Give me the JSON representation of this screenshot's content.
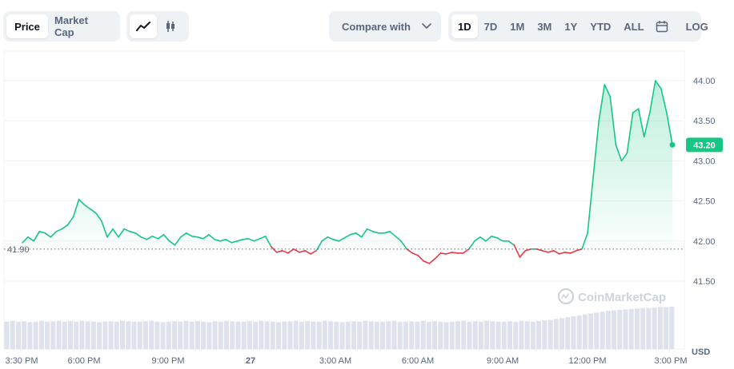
{
  "toolbar": {
    "type_tabs": [
      "Price",
      "Market Cap"
    ],
    "style_icons": [
      "line-chart-icon",
      "candlestick-icon"
    ],
    "compare_label": "Compare with",
    "ranges": [
      "1D",
      "7D",
      "1M",
      "3M",
      "1Y",
      "YTD",
      "ALL"
    ],
    "calendar_icon": "calendar-icon",
    "log_label": "LOG",
    "active_type": "Price",
    "active_range": "1D"
  },
  "watermark": "CoinMarketCap",
  "chart_data": {
    "type": "area",
    "x_unit": "time",
    "x_tick_labels": [
      "3:30 PM",
      "6:00 PM",
      "9:00 PM",
      "27",
      "3:00 AM",
      "6:00 AM",
      "9:00 AM",
      "12:00 PM",
      "3:00 PM"
    ],
    "y_tick_labels": [
      "41.50",
      "42.00",
      "42.50",
      "43.00",
      "43.50",
      "44.00"
    ],
    "ylim": [
      41.3,
      44.3
    ],
    "reference_line": {
      "value": 41.9,
      "label": "41.90"
    },
    "current_value": {
      "value": 43.2,
      "label": "43.20"
    },
    "currency_label": "USD",
    "colors": {
      "up": "#16c784",
      "down": "#ea3943",
      "volume": "#cfd6e4"
    },
    "series": [
      {
        "values": [
          41.98,
          42.05,
          42.0,
          42.12,
          42.1,
          42.05,
          42.12,
          42.15,
          42.2,
          42.3,
          42.52,
          42.45,
          42.4,
          42.35,
          42.25,
          42.05,
          42.15,
          42.05,
          42.15,
          42.12,
          42.1,
          42.05,
          42.02,
          42.06,
          42.03,
          42.08,
          42.0,
          41.95,
          42.05,
          42.1,
          42.06,
          42.05,
          42.03,
          42.08,
          42.02,
          42.0,
          42.02,
          41.98,
          42.0,
          42.02,
          42.03,
          42.0,
          42.03,
          42.06,
          41.93,
          41.86,
          41.88,
          41.85,
          41.9,
          41.86,
          41.88,
          41.84,
          41.88,
          42.0,
          42.05,
          42.02,
          42.0,
          42.04,
          42.08,
          42.1,
          42.05,
          42.15,
          42.12,
          42.1,
          42.1,
          42.12,
          42.06,
          42.0,
          41.9,
          41.85,
          41.82,
          41.75,
          41.72,
          41.78,
          41.85,
          41.84,
          41.86,
          41.85,
          41.85,
          41.9,
          42.0,
          42.05,
          42.0,
          42.06,
          42.04,
          42.0,
          42.0,
          41.95,
          41.8,
          41.88,
          41.9,
          41.9,
          41.88,
          41.86,
          41.88,
          41.84,
          41.86,
          41.85,
          41.88,
          41.9,
          42.1,
          42.8,
          43.5,
          43.95,
          43.8,
          43.2,
          43.0,
          43.1,
          43.6,
          43.65,
          43.3,
          43.6,
          44.0,
          43.9,
          43.6,
          43.2
        ]
      }
    ],
    "volume": [
      0.6,
      0.62,
      0.6,
      0.61,
      0.59,
      0.6,
      0.62,
      0.6,
      0.61,
      0.62,
      0.6,
      0.61,
      0.6,
      0.62,
      0.61,
      0.6,
      0.59,
      0.6,
      0.61,
      0.6,
      0.62,
      0.61,
      0.6,
      0.6,
      0.61,
      0.62,
      0.6,
      0.59,
      0.6,
      0.61,
      0.6,
      0.62,
      0.6,
      0.61,
      0.6,
      0.59,
      0.61,
      0.6,
      0.62,
      0.61,
      0.6,
      0.6,
      0.61,
      0.6,
      0.62,
      0.61,
      0.6,
      0.59,
      0.6,
      0.61,
      0.62,
      0.6,
      0.61,
      0.6,
      0.6,
      0.62,
      0.61,
      0.6,
      0.59,
      0.6,
      0.61,
      0.6,
      0.62,
      0.61,
      0.6,
      0.6,
      0.61,
      0.62,
      0.6,
      0.6,
      0.61,
      0.6,
      0.62,
      0.6,
      0.61,
      0.6,
      0.59,
      0.6,
      0.61,
      0.62,
      0.6,
      0.61,
      0.6,
      0.62,
      0.61,
      0.6,
      0.6,
      0.61,
      0.6,
      0.62,
      0.61,
      0.6,
      0.62,
      0.63,
      0.64,
      0.66,
      0.68,
      0.7,
      0.72,
      0.74,
      0.76,
      0.78,
      0.8,
      0.82,
      0.84,
      0.85,
      0.86,
      0.87,
      0.88,
      0.89,
      0.9,
      0.9,
      0.91,
      0.92,
      0.92,
      0.93
    ]
  }
}
